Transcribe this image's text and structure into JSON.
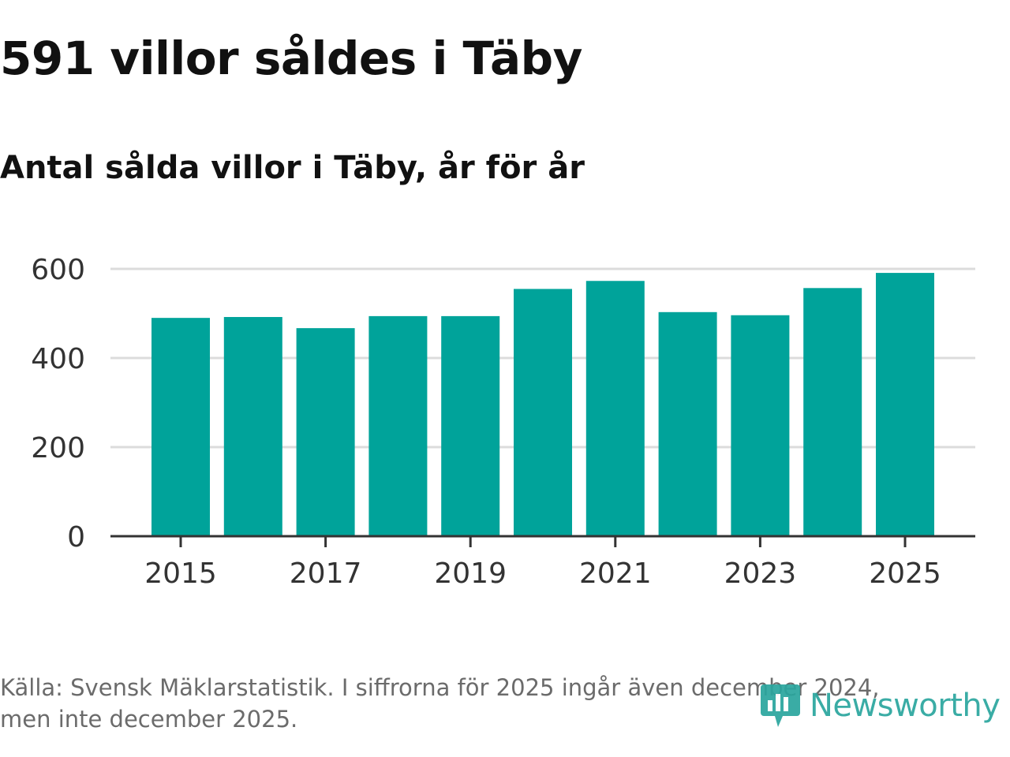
{
  "title": "591 villor såldes i Täby",
  "subtitle": "Antal sålda villor i Täby, år för år",
  "footnote": {
    "line1": "Källa: Svensk Mäklarstatistik. I siffrorna för 2025 ingår även december 2024,",
    "line2": "men inte december 2025."
  },
  "logo": {
    "text": "Newsworthy",
    "icon": "newsworthy-logo-icon"
  },
  "colors": {
    "bar": "#00a39a",
    "grid": "#dcdcdc",
    "axis": "#333333",
    "text": "#333333",
    "logo": "#2aa69e"
  },
  "chart_data": {
    "type": "bar",
    "title": "591 villor såldes i Täby",
    "subtitle": "Antal sålda villor i Täby, år för år",
    "xlabel": "",
    "ylabel": "",
    "categories": [
      "2015",
      "2016",
      "2017",
      "2018",
      "2019",
      "2020",
      "2021",
      "2022",
      "2023",
      "2024",
      "2025"
    ],
    "values": [
      490,
      492,
      467,
      494,
      494,
      555,
      573,
      503,
      496,
      557,
      591
    ],
    "x_tick_labels": [
      "2015",
      "2017",
      "2019",
      "2021",
      "2023",
      "2025"
    ],
    "y_ticks": [
      0,
      200,
      400,
      600
    ],
    "ylim": [
      0,
      600
    ],
    "grid": true
  }
}
